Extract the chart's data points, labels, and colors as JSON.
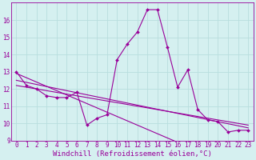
{
  "xlabel": "Windchill (Refroidissement éolien,°C)",
  "ylabel": "",
  "bg_color": "#d5f0f0",
  "line_color": "#990099",
  "grid_color": "#b8dede",
  "x_data": [
    0,
    1,
    2,
    3,
    4,
    5,
    6,
    7,
    8,
    9,
    10,
    11,
    12,
    13,
    14,
    15,
    16,
    17,
    18,
    19,
    20,
    21,
    22,
    23
  ],
  "y_main": [
    13.0,
    12.2,
    12.0,
    11.6,
    11.5,
    11.5,
    11.8,
    9.9,
    10.3,
    10.5,
    13.7,
    14.6,
    15.3,
    16.6,
    16.6,
    14.4,
    12.1,
    13.1,
    10.8,
    10.2,
    10.1,
    9.5,
    9.6,
    9.6
  ],
  "y_line1": [
    12.9,
    12.65,
    12.4,
    12.15,
    11.9,
    11.65,
    11.4,
    11.15,
    10.9,
    10.65,
    10.4,
    10.15,
    9.9,
    9.65,
    9.4,
    9.15,
    8.9,
    8.65,
    8.4,
    8.15,
    7.9,
    7.65,
    7.4,
    7.15
  ],
  "y_line2": [
    12.5,
    12.38,
    12.26,
    12.14,
    12.02,
    11.9,
    11.78,
    11.66,
    11.54,
    11.42,
    11.3,
    11.18,
    11.06,
    10.94,
    10.82,
    10.7,
    10.58,
    10.46,
    10.34,
    10.22,
    10.1,
    9.98,
    9.86,
    9.74
  ],
  "y_line3": [
    12.2,
    12.1,
    12.0,
    11.9,
    11.8,
    11.7,
    11.6,
    11.5,
    11.4,
    11.3,
    11.2,
    11.1,
    11.0,
    10.9,
    10.8,
    10.7,
    10.6,
    10.5,
    10.4,
    10.3,
    10.2,
    10.1,
    10.0,
    9.9
  ],
  "xlim": [
    -0.5,
    23.5
  ],
  "ylim": [
    9,
    17
  ],
  "xticks": [
    0,
    1,
    2,
    3,
    4,
    5,
    6,
    7,
    8,
    9,
    10,
    11,
    12,
    13,
    14,
    15,
    16,
    17,
    18,
    19,
    20,
    21,
    22,
    23
  ],
  "yticks": [
    9,
    10,
    11,
    12,
    13,
    14,
    15,
    16
  ],
  "tick_fontsize": 5.5,
  "label_fontsize": 6.5
}
